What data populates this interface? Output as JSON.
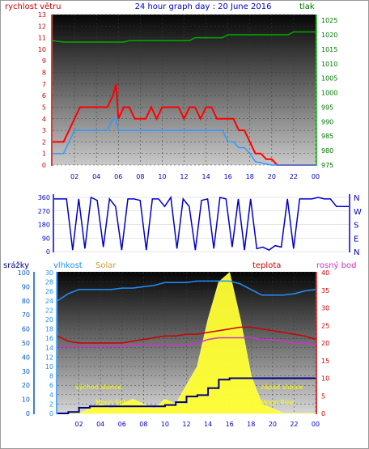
{
  "title": "24 hour graph day : 20 June 2016",
  "colors": {
    "wind": "#ff0000",
    "wind_avg": "#3399ff",
    "pressure": "#00aa00",
    "direction": "#0000cc",
    "humidity": "#1e90ff",
    "solar": "#ffff33",
    "rain": "#000080",
    "temperature": "#cc0000",
    "dewpoint": "#cc33cc",
    "annot": "#ffff00"
  },
  "x_ticks": [
    "02",
    "04",
    "06",
    "08",
    "10",
    "12",
    "14",
    "16",
    "18",
    "20",
    "22",
    "00"
  ],
  "chart_data": [
    {
      "type": "line",
      "name": "wind-pressure",
      "left_label": "rychlost větru",
      "right_label": "tlak",
      "left_ylim": [
        0,
        13
      ],
      "left_ticks": [
        "0",
        "1",
        "2",
        "3",
        "4",
        "5",
        "6",
        "7",
        "8",
        "9",
        "10",
        "11",
        "12",
        "13"
      ],
      "right_ylim": [
        975,
        1027
      ],
      "right_ticks": [
        "975",
        "980",
        "985",
        "990",
        "995",
        "1000",
        "1005",
        "1010",
        "1015",
        "1020",
        "1025"
      ],
      "x_hours": [
        0,
        1,
        1.5,
        2,
        2.5,
        3,
        3.5,
        4,
        4.5,
        5,
        5.5,
        5.8,
        6,
        6.5,
        7,
        7.5,
        8,
        8.5,
        9,
        9.5,
        10,
        10.5,
        11,
        11.5,
        12,
        12.5,
        13,
        13.5,
        14,
        14.5,
        15,
        15.5,
        16,
        16.5,
        17,
        17.5,
        18,
        18.5,
        19,
        19.5,
        20,
        20.5,
        21,
        21.5,
        22,
        22.5,
        23,
        23.5,
        24
      ],
      "series": [
        {
          "key": "gust",
          "values": [
            2,
            2,
            3,
            4,
            5,
            5,
            5,
            5,
            5,
            5,
            6,
            7,
            4,
            5,
            5,
            4,
            4,
            4,
            5,
            4,
            5,
            5,
            5,
            5,
            4,
            5,
            5,
            4,
            5,
            5,
            4,
            4,
            4,
            4,
            3,
            3,
            2,
            1,
            1,
            0.5,
            0.5,
            0,
            0,
            0,
            0,
            0,
            0,
            0,
            0
          ]
        },
        {
          "key": "average",
          "values": [
            1,
            1,
            2,
            3,
            3,
            3,
            3,
            3,
            3,
            3,
            4,
            4,
            3,
            3,
            3,
            3,
            3,
            3,
            3,
            3,
            3,
            3,
            3,
            3,
            3,
            3,
            3,
            3,
            3,
            3,
            3,
            3,
            2,
            2,
            1.5,
            1.5,
            1,
            0.3,
            0.2,
            0.1,
            0,
            0,
            0,
            0,
            0,
            0,
            0,
            0,
            0
          ]
        },
        {
          "key": "pressure",
          "values": [
            1018,
            1017.5,
            1017.5,
            1017.5,
            1017.5,
            1017.5,
            1017.5,
            1017.5,
            1017.5,
            1017.5,
            1017.5,
            1017.5,
            1017.5,
            1017.5,
            1018,
            1018,
            1018,
            1018,
            1018,
            1018,
            1018,
            1018,
            1018,
            1018,
            1018,
            1018,
            1019,
            1019,
            1019,
            1019,
            1019,
            1019,
            1020,
            1020,
            1020,
            1020,
            1020,
            1020,
            1020,
            1020,
            1020,
            1020,
            1020,
            1020,
            1021,
            1021,
            1021,
            1021,
            1021
          ]
        }
      ]
    },
    {
      "type": "line",
      "name": "wind-direction",
      "ylim": [
        0,
        360
      ],
      "y_ticks": [
        "0",
        "90",
        "180",
        "270",
        "360"
      ],
      "right_labels": [
        "N",
        "W",
        "S",
        "E",
        "N"
      ],
      "x_hours": [
        0,
        0.5,
        1,
        1.5,
        2,
        2.5,
        3,
        3.5,
        4,
        4.5,
        5,
        5.5,
        6,
        6.5,
        7,
        7.5,
        8,
        8.5,
        9,
        9.5,
        10,
        10.5,
        11,
        11.5,
        12,
        12.5,
        13,
        13.5,
        14,
        14.5,
        15,
        15.5,
        16,
        16.5,
        17,
        17.5,
        18,
        18.5,
        19,
        19.5,
        20,
        20.5,
        21,
        21.5,
        22,
        22.5,
        23,
        23.5,
        24
      ],
      "values": [
        350,
        350,
        350,
        10,
        350,
        20,
        360,
        340,
        30,
        350,
        300,
        10,
        350,
        350,
        340,
        10,
        350,
        350,
        300,
        360,
        20,
        350,
        300,
        10,
        340,
        350,
        20,
        360,
        350,
        30,
        350,
        10,
        350,
        20,
        30,
        10,
        40,
        30,
        350,
        20,
        350,
        350,
        350,
        360,
        350,
        350,
        300,
        300,
        300
      ]
    },
    {
      "type": "line",
      "name": "temperature-humidity-solar-rain",
      "labels": {
        "rain": "srážky",
        "humidity": "vlhkost",
        "solar": "Solar",
        "temperature": "teplota",
        "dewpoint": "rosný bod"
      },
      "rain_ylim": [
        0,
        100
      ],
      "rain_ticks": [
        "0",
        "10",
        "20",
        "30",
        "40",
        "50",
        "60",
        "70",
        "80",
        "90",
        "100"
      ],
      "humidity_ylim": [
        0,
        30
      ],
      "humidity_ticks": [
        "0",
        "2",
        "4",
        "6",
        "8",
        "10",
        "12",
        "14",
        "16",
        "18",
        "20",
        "22",
        "24",
        "26",
        "28",
        "30"
      ],
      "temp_ylim": [
        0,
        40
      ],
      "temp_ticks": [
        "0",
        "5",
        "10",
        "15",
        "20",
        "25",
        "30",
        "35",
        "40"
      ],
      "annotations": {
        "sunrise": "východ slunce",
        "sunset": "západ slunce",
        "moonset": "Moon Set",
        "moonrise": "Moon Rise"
      },
      "x_hours": [
        0,
        1,
        2,
        3,
        4,
        5,
        6,
        7,
        8,
        9,
        10,
        11,
        12,
        13,
        14,
        15,
        16,
        17,
        18,
        19,
        20,
        21,
        22,
        23,
        24
      ],
      "series": [
        {
          "key": "humidity",
          "values": [
            80,
            85,
            88,
            88,
            88,
            88,
            89,
            89,
            90,
            91,
            93,
            93,
            93,
            94,
            94,
            94,
            94,
            92,
            88,
            84,
            84,
            84,
            85,
            87,
            88
          ]
        },
        {
          "key": "temperature",
          "values": [
            22,
            20.5,
            20,
            20,
            20,
            20,
            20,
            20.5,
            21,
            21.5,
            22,
            22,
            22.5,
            22.5,
            23,
            23.5,
            24,
            24.5,
            24.5,
            24,
            23.5,
            23,
            22.5,
            22,
            21
          ]
        },
        {
          "key": "dewpoint",
          "values": [
            19,
            19,
            19,
            19,
            19,
            19,
            19,
            19.5,
            19.5,
            19.5,
            19.5,
            19.5,
            19.5,
            20,
            21,
            21.5,
            21.5,
            21.5,
            21.5,
            21,
            21,
            20.5,
            20,
            20,
            19.5
          ]
        },
        {
          "key": "rain",
          "values": [
            0,
            1,
            4,
            5,
            5,
            5,
            5,
            5,
            5,
            5,
            6,
            8,
            12,
            13,
            18,
            24,
            25,
            25,
            25,
            25,
            25,
            25,
            25,
            25,
            25
          ]
        },
        {
          "key": "solar",
          "values": [
            0,
            0,
            0,
            1,
            2,
            1,
            2,
            3,
            2,
            1,
            3,
            2,
            6,
            10,
            20,
            28,
            30,
            20,
            8,
            2,
            1,
            0,
            0,
            0,
            0
          ]
        }
      ]
    }
  ]
}
